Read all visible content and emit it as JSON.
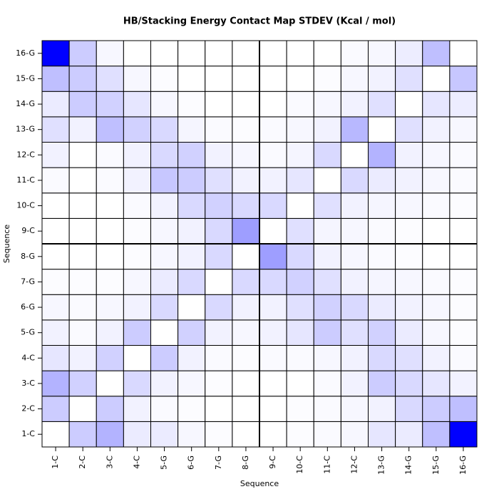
{
  "chart_data": {
    "type": "heatmap",
    "title": "HB/Stacking Energy Contact Map STDEV (Kcal / mol)",
    "x_label": "Sequence",
    "y_label": "Sequence",
    "x_categories": [
      "1-C",
      "2-C",
      "3-C",
      "4-C",
      "5-G",
      "6-G",
      "7-G",
      "8-G",
      "9-C",
      "10-C",
      "11-C",
      "12-C",
      "13-G",
      "14-G",
      "15-G",
      "16-G"
    ],
    "y_categories": [
      "1-C",
      "2-C",
      "3-C",
      "4-C",
      "5-G",
      "6-G",
      "7-G",
      "8-G",
      "9-C",
      "10-C",
      "11-C",
      "12-C",
      "13-G",
      "14-G",
      "15-G",
      "16-G"
    ],
    "color_low": "#ffffff",
    "color_high": "#0000ff",
    "z": [
      [
        0,
        0.2,
        0.3,
        0.08,
        0.08,
        0.03,
        0.01,
        0,
        0,
        0.01,
        0.02,
        0.03,
        0.1,
        0.08,
        0.25,
        1.0
      ],
      [
        0.2,
        0,
        0.2,
        0.05,
        0.02,
        0.01,
        0,
        0,
        0,
        0.01,
        0.02,
        0.03,
        0.05,
        0.15,
        0.2,
        0.25
      ],
      [
        0.3,
        0.18,
        0,
        0.15,
        0.05,
        0.03,
        0.01,
        0,
        0,
        0,
        0.02,
        0.05,
        0.2,
        0.15,
        0.1,
        0.05
      ],
      [
        0.1,
        0.05,
        0.18,
        0,
        0.2,
        0.05,
        0.02,
        0.01,
        0.02,
        0.02,
        0.03,
        0.05,
        0.15,
        0.12,
        0.05,
        0.02
      ],
      [
        0.05,
        0.02,
        0.05,
        0.2,
        0,
        0.18,
        0.05,
        0.03,
        0.05,
        0.1,
        0.2,
        0.12,
        0.18,
        0.08,
        0.03,
        0.01
      ],
      [
        0.03,
        0.02,
        0.03,
        0.05,
        0.15,
        0,
        0.15,
        0.05,
        0.05,
        0.12,
        0.18,
        0.15,
        0.08,
        0.05,
        0.03,
        0.01
      ],
      [
        0.01,
        0.01,
        0.01,
        0.03,
        0.08,
        0.15,
        0,
        0.15,
        0.15,
        0.18,
        0.12,
        0.05,
        0.04,
        0.03,
        0.02,
        0.01
      ],
      [
        0,
        0,
        0,
        0.01,
        0.03,
        0.05,
        0.15,
        0,
        0.38,
        0.15,
        0.05,
        0.03,
        0.02,
        0.01,
        0,
        0
      ],
      [
        0,
        0,
        0,
        0.01,
        0.03,
        0.05,
        0.15,
        0.38,
        0,
        0.12,
        0.04,
        0.03,
        0.02,
        0.01,
        0,
        0
      ],
      [
        0,
        0,
        0,
        0.02,
        0.05,
        0.15,
        0.18,
        0.15,
        0.15,
        0,
        0.12,
        0.05,
        0.04,
        0.03,
        0.02,
        0.01
      ],
      [
        0.02,
        0,
        0.02,
        0.05,
        0.22,
        0.2,
        0.12,
        0.05,
        0.05,
        0.1,
        0,
        0.15,
        0.08,
        0.05,
        0.03,
        0.02
      ],
      [
        0.05,
        0,
        0.02,
        0.05,
        0.15,
        0.18,
        0.05,
        0.03,
        0.02,
        0.04,
        0.15,
        0,
        0.3,
        0.05,
        0.03,
        0.02
      ],
      [
        0.12,
        0.05,
        0.25,
        0.18,
        0.15,
        0.04,
        0.02,
        0.01,
        0.02,
        0.03,
        0.05,
        0.28,
        0,
        0.12,
        0.05,
        0.03
      ],
      [
        0.08,
        0.2,
        0.18,
        0.1,
        0.03,
        0.01,
        0,
        0,
        0,
        0.02,
        0.03,
        0.05,
        0.12,
        0,
        0.1,
        0.07
      ],
      [
        0.25,
        0.2,
        0.12,
        0.03,
        0.01,
        0,
        0,
        0,
        0,
        0,
        0.01,
        0.03,
        0.05,
        0.12,
        0,
        0.22
      ],
      [
        1.0,
        0.2,
        0.03,
        0,
        0,
        0,
        0,
        0,
        0,
        0,
        0,
        0.02,
        0.03,
        0.07,
        0.25,
        0
      ]
    ]
  }
}
